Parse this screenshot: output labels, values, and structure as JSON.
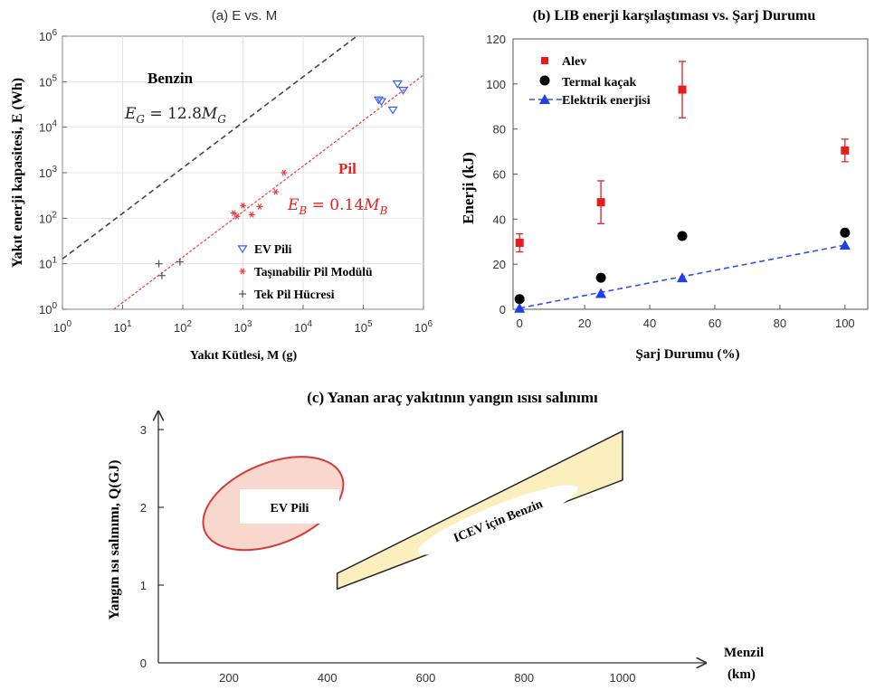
{
  "panel_a": {
    "title": "(a) E vs. M",
    "xlabel": "Yakıt Kütlesi, M (g)",
    "ylabel": "Yakıt enerji kapasitesi, E (Wh)",
    "benzin_label": "Benzin",
    "benzin_eq": "E_G = 12.8M_G",
    "pil_label": "Pil",
    "pil_eq": "E_B = 0.14M_B",
    "legend": [
      "EV Pili",
      "Taşınabilir Pil Modülü",
      "Tek Pil Hücresi"
    ],
    "x_ticks": [
      "10^0",
      "10^1",
      "10^2",
      "10^3",
      "10^4",
      "10^5",
      "10^6"
    ],
    "y_ticks": [
      "10^0",
      "10^1",
      "10^2",
      "10^3",
      "10^4",
      "10^5",
      "10^6"
    ]
  },
  "panel_b": {
    "title": "(b) LIB enerji karşılaştıması vs. Şarj Durumu",
    "xlabel": "Şarj Durumu (%)",
    "ylabel": "Enerji (kJ)",
    "legend": [
      "Alev",
      "Termal kaçak",
      "Elektrik enerjisi"
    ],
    "x_ticks": [
      "0",
      "20",
      "40",
      "60",
      "80",
      "100"
    ],
    "y_ticks": [
      "0",
      "20",
      "40",
      "60",
      "80",
      "100",
      "120"
    ]
  },
  "panel_c": {
    "title": "(c) Yanan araç yakıtının yangın ısısı salınımı",
    "xlabel_1": "Menzil",
    "xlabel_2": "(km)",
    "ylabel": "Yangın ısı salınımı, Q(GJ)",
    "ev_label": "EV Pili",
    "icev_label": "ICEV için Benzin",
    "x_ticks": [
      "200",
      "400",
      "600",
      "800",
      "1000"
    ],
    "y_ticks": [
      "0",
      "1",
      "2",
      "3"
    ]
  },
  "chart_data": [
    {
      "type": "scatter",
      "x_scale": "log",
      "y_scale": "log",
      "xlim": [
        1,
        1000000
      ],
      "ylim": [
        1,
        1000000
      ],
      "grid": true,
      "legend_position": "bottom-right",
      "series": [
        {
          "name": "EV Pili",
          "x": [
            180000,
            200000,
            310000,
            370000,
            460000
          ],
          "y": [
            40000,
            37000,
            24000,
            90000,
            65000
          ]
        },
        {
          "name": "Taşınabilir Pil Modülü",
          "x": [
            700,
            800,
            1000,
            1400,
            1900,
            3500,
            4800
          ],
          "y": [
            130,
            110,
            190,
            120,
            180,
            380,
            1000
          ]
        },
        {
          "name": "Tek Pil Hücresi",
          "x": [
            40,
            45,
            90
          ],
          "y": [
            10,
            5.5,
            11
          ]
        }
      ],
      "lines": [
        {
          "label": "E_G = 12.8M_G",
          "coef": 12.8
        },
        {
          "label": "E_B = 0.14M_B",
          "coef": 0.14
        }
      ]
    },
    {
      "type": "scatter",
      "xlim": [
        -2,
        107
      ],
      "ylim": [
        0,
        120
      ],
      "legend_position": "top-left",
      "series": [
        {
          "name": "Alev",
          "x": [
            0,
            25,
            50,
            100
          ],
          "y": [
            29.5,
            47.5,
            97.5,
            70.5
          ],
          "err": [
            4,
            9.5,
            12.5,
            5
          ]
        },
        {
          "name": "Termal kaçak",
          "x": [
            0,
            25,
            50,
            100
          ],
          "y": [
            4.5,
            14,
            32.5,
            34
          ]
        },
        {
          "name": "Elektrik enerjisi",
          "x": [
            0,
            25,
            50,
            100
          ],
          "y": [
            0.5,
            7,
            14,
            28.5
          ]
        }
      ]
    },
    {
      "type": "diagram",
      "xlim": [
        50,
        1150
      ],
      "ylim": [
        0,
        3.2
      ],
      "regions": [
        {
          "name": "EV Pili",
          "shape": "ellipse",
          "center": [
            290,
            2.05
          ],
          "rx": 150,
          "ry_gj": 0.52,
          "rotation_deg": -22
        },
        {
          "name": "ICEV için Benzin",
          "shape": "quadrilateral",
          "points": [
            [
              420,
              1.15
            ],
            [
              1000,
              2.98
            ],
            [
              1000,
              2.35
            ],
            [
              420,
              0.95
            ]
          ]
        }
      ]
    }
  ]
}
